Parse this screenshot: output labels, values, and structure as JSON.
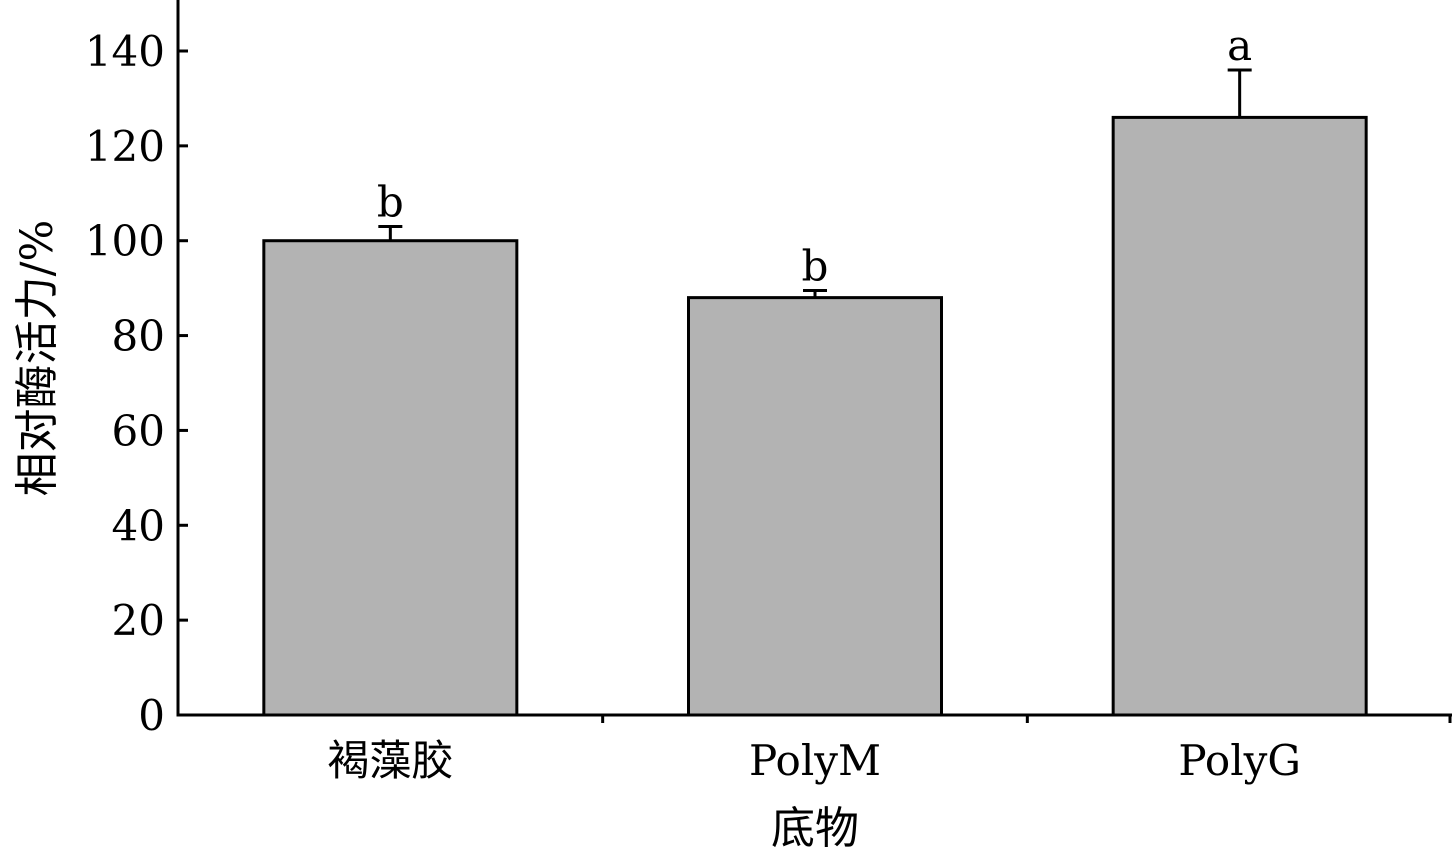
{
  "chart_data": {
    "type": "bar",
    "categories": [
      "褐藻胶",
      "PolyM",
      "PolyG"
    ],
    "values": [
      100,
      88,
      126
    ],
    "errors": [
      3,
      1.5,
      10
    ],
    "significance": [
      "b",
      "b",
      "a"
    ],
    "xlabel": "底物",
    "ylabel": "相对酶活力/%",
    "ylim": [
      0,
      150
    ],
    "yticks": [
      0,
      20,
      40,
      60,
      80,
      100,
      120,
      140
    ],
    "bar_color": "#b3b3b3",
    "grid": false
  }
}
